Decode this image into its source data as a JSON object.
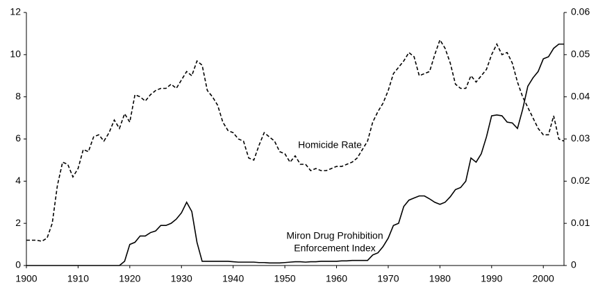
{
  "chart_data": {
    "type": "line",
    "annotations": [
      "Homicide Rate",
      "Miron Drug Prohibition",
      "Enforcement Index"
    ],
    "x": [
      1900,
      1901,
      1902,
      1903,
      1904,
      1905,
      1906,
      1907,
      1908,
      1909,
      1910,
      1911,
      1912,
      1913,
      1914,
      1915,
      1916,
      1917,
      1918,
      1919,
      1920,
      1921,
      1922,
      1923,
      1924,
      1925,
      1926,
      1927,
      1928,
      1929,
      1930,
      1931,
      1932,
      1933,
      1934,
      1935,
      1936,
      1937,
      1938,
      1939,
      1940,
      1941,
      1942,
      1943,
      1944,
      1945,
      1946,
      1947,
      1948,
      1949,
      1950,
      1951,
      1952,
      1953,
      1954,
      1955,
      1956,
      1957,
      1958,
      1959,
      1960,
      1961,
      1962,
      1963,
      1964,
      1965,
      1966,
      1967,
      1968,
      1969,
      1970,
      1971,
      1972,
      1973,
      1974,
      1975,
      1976,
      1977,
      1978,
      1979,
      1980,
      1981,
      1982,
      1983,
      1984,
      1985,
      1986,
      1987,
      1988,
      1989,
      1990,
      1991,
      1992,
      1993,
      1994,
      1995,
      1996,
      1997,
      1998,
      1999,
      2000,
      2001,
      2002,
      2003,
      2004
    ],
    "series": [
      {
        "color": "#000000",
        "dash": true,
        "values": [
          1.2,
          1.2,
          1.2,
          1.15,
          1.3,
          2.0,
          3.8,
          4.9,
          4.8,
          4.2,
          4.6,
          5.5,
          5.4,
          6.1,
          6.2,
          5.9,
          6.3,
          6.9,
          6.5,
          7.2,
          6.8,
          8.1,
          8.0,
          7.8,
          8.1,
          8.3,
          8.4,
          8.4,
          8.6,
          8.4,
          8.8,
          9.2,
          9.0,
          9.7,
          9.5,
          8.3,
          8.0,
          7.6,
          6.8,
          6.4,
          6.3,
          6.0,
          5.9,
          5.1,
          5.0,
          5.7,
          6.3,
          6.1,
          5.9,
          5.4,
          5.3,
          4.9,
          5.2,
          4.8,
          4.8,
          4.5,
          4.6,
          4.5,
          4.5,
          4.6,
          4.7,
          4.7,
          4.8,
          4.9,
          5.1,
          5.5,
          5.9,
          6.8,
          7.3,
          7.7,
          8.3,
          9.1,
          9.4,
          9.7,
          10.1,
          9.9,
          9.0,
          9.1,
          9.2,
          10.0,
          10.7,
          10.3,
          9.6,
          8.6,
          8.4,
          8.4,
          9.0,
          8.7,
          9.0,
          9.3,
          10.0,
          10.5,
          10.0,
          10.1,
          9.6,
          8.7,
          8.0,
          7.5,
          7.0,
          6.5,
          6.2,
          6.2,
          7.1,
          6.0,
          5.9
        ]
      },
      {
        "color": "#000000",
        "dash": false,
        "axis": "y2",
        "values": [
          0,
          0,
          0,
          0,
          0,
          0,
          0,
          0,
          0,
          0,
          0,
          0,
          0,
          0,
          0,
          0,
          0,
          0,
          0,
          0.001,
          0.005,
          0.0055,
          0.007,
          0.007,
          0.0078,
          0.0082,
          0.0095,
          0.0095,
          0.01,
          0.011,
          0.0125,
          0.015,
          0.0128,
          0.0055,
          0.001,
          0.001,
          0.001,
          0.001,
          0.001,
          0.001,
          0.0009,
          0.0008,
          0.0008,
          0.0008,
          0.0008,
          0.0007,
          0.0007,
          0.0006,
          0.0006,
          0.0006,
          0.0007,
          0.0008,
          0.0009,
          0.0009,
          0.0008,
          0.0009,
          0.0009,
          0.001,
          0.001,
          0.001,
          0.001,
          0.0011,
          0.0011,
          0.0012,
          0.0012,
          0.0012,
          0.0012,
          0.0025,
          0.003,
          0.0045,
          0.0065,
          0.0095,
          0.01,
          0.014,
          0.0155,
          0.016,
          0.0165,
          0.0165,
          0.0158,
          0.015,
          0.0145,
          0.015,
          0.0163,
          0.018,
          0.0185,
          0.02,
          0.0255,
          0.0245,
          0.0265,
          0.0305,
          0.0355,
          0.0357,
          0.0355,
          0.034,
          0.0338,
          0.0325,
          0.037,
          0.0425,
          0.0445,
          0.046,
          0.049,
          0.0495,
          0.0515,
          0.0525,
          0.0525
        ]
      }
    ],
    "xlim": [
      1900,
      2004
    ],
    "xticks": [
      1900,
      1910,
      1920,
      1930,
      1940,
      1950,
      1960,
      1970,
      1980,
      1990,
      2000
    ],
    "ylim": [
      0,
      12
    ],
    "yticks": [
      0,
      2,
      4,
      6,
      8,
      10,
      12
    ],
    "y2lim": [
      0,
      0.06
    ],
    "y2ticks": [
      0,
      0.01,
      0.02,
      0.03,
      0.04,
      0.05,
      0.06
    ]
  }
}
